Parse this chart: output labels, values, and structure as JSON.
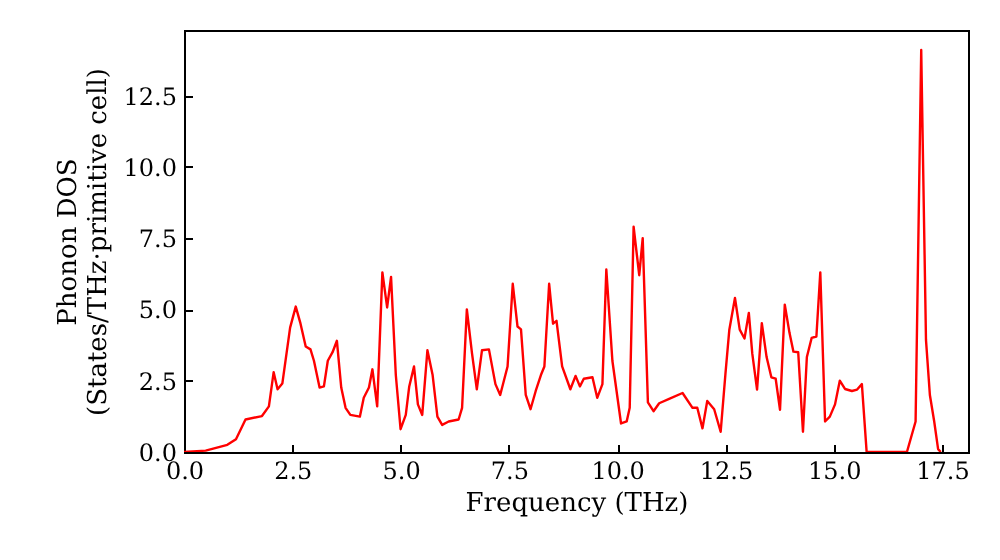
{
  "chart_data": {
    "type": "line",
    "xlabel": "Frequency (THz)",
    "ylabel": "Phonon DOS\n(States/THz·primitive cell)",
    "xlim": [
      0,
      18.1
    ],
    "ylim": [
      0,
      14.8
    ],
    "xticks": [
      {
        "value": 0,
        "label": "0.0"
      },
      2.5,
      {
        "value": 5,
        "label": "5.0"
      },
      7.5,
      {
        "value": 10,
        "label": "10.0"
      },
      12.5,
      {
        "value": 15,
        "label": "15.0"
      },
      17.5
    ],
    "yticks": [
      {
        "value": 0,
        "label": "0.0"
      },
      2.5,
      {
        "value": 5,
        "label": "5.0"
      },
      7.5,
      {
        "value": 10,
        "label": "10.0"
      },
      12.5
    ],
    "grid": false,
    "series": [
      {
        "color": "#ff0000",
        "x": [
          0,
          0.5,
          1.0,
          1.2,
          1.42,
          1.8,
          1.96,
          2.07,
          2.16,
          2.27,
          2.45,
          2.58,
          2.69,
          2.81,
          2.92,
          3.0,
          3.13,
          3.23,
          3.32,
          3.43,
          3.53,
          3.63,
          3.73,
          3.84,
          4.06,
          4.15,
          4.27,
          4.35,
          4.46,
          4.58,
          4.69,
          4.78,
          4.89,
          5.0,
          5.12,
          5.2,
          5.31,
          5.4,
          5.5,
          5.62,
          5.74,
          5.85,
          5.96,
          6.11,
          6.34,
          6.42,
          6.53,
          6.65,
          6.76,
          6.88,
          7.04,
          7.19,
          7.3,
          7.47,
          7.59,
          7.7,
          7.78,
          7.89,
          8.0,
          8.12,
          8.24,
          8.32,
          8.43,
          8.52,
          8.6,
          8.73,
          8.92,
          9.04,
          9.14,
          9.23,
          9.43,
          9.54,
          9.66,
          9.75,
          9.89,
          10.09,
          10.22,
          10.29,
          10.38,
          10.51,
          10.59,
          10.71,
          10.84,
          10.97,
          11.2,
          11.51,
          11.74,
          11.85,
          11.97,
          12.08,
          12.24,
          12.39,
          12.5,
          12.59,
          12.72,
          12.83,
          12.94,
          13.04,
          13.12,
          13.23,
          13.34,
          13.45,
          13.56,
          13.66,
          13.76,
          13.87,
          13.98,
          14.07,
          14.18,
          14.29,
          14.38,
          14.49,
          14.6,
          14.69,
          14.8,
          14.91,
          15.03,
          15.14,
          15.26,
          15.42,
          15.54,
          15.65,
          15.76,
          16.69,
          16.89,
          17.02,
          17.13,
          17.22,
          17.32,
          17.41,
          17.47
        ],
        "values": [
          0,
          0.05,
          0.25,
          0.45,
          1.14,
          1.26,
          1.6,
          2.8,
          2.2,
          2.4,
          4.36,
          5.1,
          4.5,
          3.7,
          3.6,
          3.2,
          2.26,
          2.3,
          3.2,
          3.5,
          3.9,
          2.26,
          1.55,
          1.3,
          1.24,
          1.9,
          2.26,
          2.9,
          1.6,
          6.3,
          5.07,
          6.14,
          2.7,
          0.8,
          1.3,
          2.3,
          3.0,
          1.67,
          1.3,
          3.57,
          2.7,
          1.24,
          0.95,
          1.07,
          1.14,
          1.55,
          5.0,
          3.45,
          2.2,
          3.57,
          3.6,
          2.38,
          2.0,
          3.0,
          5.9,
          4.4,
          4.3,
          2.0,
          1.5,
          2.14,
          2.7,
          3.0,
          5.9,
          4.5,
          4.6,
          3.0,
          2.2,
          2.67,
          2.3,
          2.57,
          2.62,
          1.9,
          2.38,
          6.4,
          3.2,
          1.0,
          1.07,
          1.55,
          7.9,
          6.2,
          7.5,
          1.74,
          1.43,
          1.71,
          1.86,
          2.07,
          1.55,
          1.55,
          0.83,
          1.79,
          1.5,
          0.71,
          2.74,
          4.29,
          5.4,
          4.29,
          3.98,
          4.88,
          3.45,
          2.19,
          4.52,
          3.33,
          2.62,
          2.57,
          1.48,
          5.17,
          4.17,
          3.52,
          3.5,
          0.71,
          3.33,
          4.0,
          4.05,
          6.3,
          1.07,
          1.24,
          1.67,
          2.5,
          2.21,
          2.14,
          2.19,
          2.38,
          0,
          0,
          1.07,
          14.1,
          3.93,
          2.0,
          1.07,
          0.1,
          0
        ]
      }
    ]
  }
}
